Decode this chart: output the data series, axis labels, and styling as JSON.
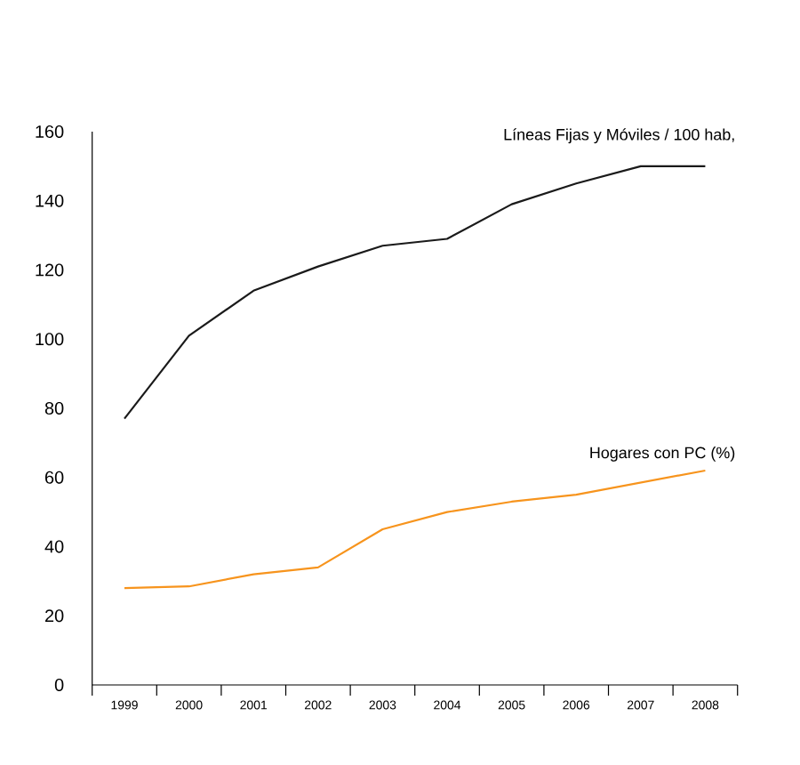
{
  "chart_data": {
    "type": "line",
    "categories": [
      "1999",
      "2000",
      "2001",
      "2002",
      "2003",
      "2004",
      "2005",
      "2006",
      "2007",
      "2008"
    ],
    "series": [
      {
        "name": "Líneas Fijas y Móviles / 100 hab,",
        "color": "#1a1a1a",
        "values": [
          77,
          101,
          114,
          121,
          127,
          129,
          139,
          145,
          150,
          150
        ]
      },
      {
        "name": "Hogares con PC (%)",
        "color": "#f7941d",
        "values": [
          28,
          28.5,
          32,
          34,
          45,
          50,
          53,
          55,
          58.5,
          62
        ]
      }
    ],
    "ylim": [
      0,
      160
    ],
    "yticks": [
      0,
      20,
      40,
      60,
      80,
      100,
      120,
      140,
      160
    ],
    "grid": false,
    "legend": false,
    "marker": "none",
    "line_style": "solid"
  }
}
